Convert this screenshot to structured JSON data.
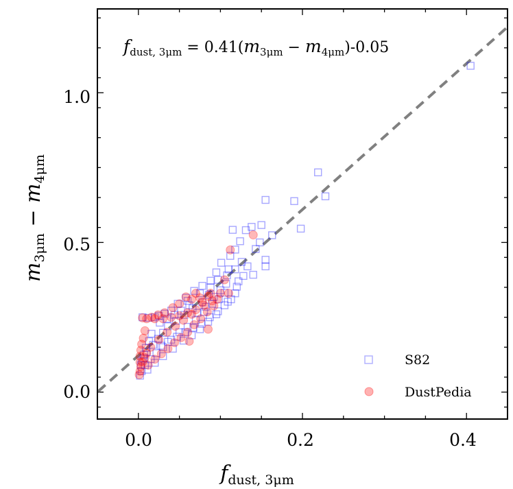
{
  "chart_data": {
    "type": "scatter",
    "title": "",
    "annotation": {
      "lhs_main": "f",
      "lhs_sub": "dust, 3μm",
      "eq": " = 0.41(",
      "m1": "m",
      "m1_sub": "3μm",
      "minus": " − ",
      "m2": "m",
      "m2_sub": "4μm",
      "tail": ")-0.05"
    },
    "xlabel": {
      "main": "f",
      "sub": "dust, 3μm"
    },
    "ylabel": {
      "a": "m",
      "a_sub": "3μm",
      "minus": " − ",
      "b": "m",
      "b_sub": "4μm"
    },
    "xlim": [
      -0.05,
      0.45
    ],
    "ylim": [
      -0.09,
      1.28
    ],
    "xticks": [
      0.0,
      0.2,
      0.4
    ],
    "xtick_labels": [
      "0.0",
      "0.2",
      "0.4"
    ],
    "yticks": [
      0.0,
      0.5,
      1.0
    ],
    "ytick_labels": [
      "0.0",
      "0.5",
      "1.0"
    ],
    "fit_line": {
      "slope": 0.41,
      "intercept": -0.05,
      "style": "dashed",
      "color": "#808080"
    },
    "legend": {
      "position": "bottom-right",
      "entries": [
        "S82",
        "DustPedia"
      ]
    },
    "series": [
      {
        "name": "S82",
        "marker": "square",
        "color": "#0000ff",
        "points": [
          [
            0.405,
            1.09
          ],
          [
            0.219,
            0.734
          ],
          [
            0.228,
            0.654
          ],
          [
            0.155,
            0.642
          ],
          [
            0.19,
            0.638
          ],
          [
            0.198,
            0.546
          ],
          [
            0.163,
            0.524
          ],
          [
            0.15,
            0.558
          ],
          [
            0.138,
            0.552
          ],
          [
            0.131,
            0.541
          ],
          [
            0.115,
            0.542
          ],
          [
            0.124,
            0.504
          ],
          [
            0.143,
            0.478
          ],
          [
            0.155,
            0.442
          ],
          [
            0.155,
            0.42
          ],
          [
            0.118,
            0.476
          ],
          [
            0.112,
            0.455
          ],
          [
            0.101,
            0.432
          ],
          [
            0.095,
            0.4
          ],
          [
            0.088,
            0.372
          ],
          [
            0.078,
            0.355
          ],
          [
            0.068,
            0.338
          ],
          [
            0.058,
            0.315
          ],
          [
            0.048,
            0.295
          ],
          [
            0.04,
            0.272
          ],
          [
            0.032,
            0.262
          ],
          [
            0.025,
            0.255
          ],
          [
            0.02,
            0.25
          ],
          [
            0.012,
            0.248
          ],
          [
            0.005,
            0.25
          ],
          [
            0.107,
            0.362
          ],
          [
            0.105,
            0.332
          ],
          [
            0.098,
            0.31
          ],
          [
            0.09,
            0.295
          ],
          [
            0.08,
            0.268
          ],
          [
            0.07,
            0.24
          ],
          [
            0.06,
            0.218
          ],
          [
            0.05,
            0.2
          ],
          [
            0.04,
            0.175
          ],
          [
            0.03,
            0.15
          ],
          [
            0.022,
            0.13
          ],
          [
            0.015,
            0.11
          ],
          [
            0.008,
            0.09
          ],
          [
            0.004,
            0.07
          ],
          [
            0.002,
            0.055
          ],
          [
            0.011,
            0.075
          ],
          [
            0.02,
            0.098
          ],
          [
            0.03,
            0.12
          ],
          [
            0.042,
            0.145
          ],
          [
            0.055,
            0.172
          ],
          [
            0.065,
            0.19
          ],
          [
            0.075,
            0.21
          ],
          [
            0.085,
            0.235
          ],
          [
            0.095,
            0.26
          ],
          [
            0.105,
            0.29
          ],
          [
            0.113,
            0.31
          ],
          [
            0.118,
            0.33
          ],
          [
            0.086,
            0.325
          ],
          [
            0.078,
            0.3
          ],
          [
            0.066,
            0.28
          ],
          [
            0.056,
            0.258
          ],
          [
            0.046,
            0.238
          ],
          [
            0.036,
            0.22
          ],
          [
            0.03,
            0.198
          ],
          [
            0.024,
            0.178
          ],
          [
            0.018,
            0.158
          ],
          [
            0.01,
            0.135
          ],
          [
            0.006,
            0.112
          ],
          [
            0.003,
            0.09
          ],
          [
            0.14,
            0.392
          ],
          [
            0.128,
            0.388
          ],
          [
            0.122,
            0.37
          ],
          [
            0.133,
            0.42
          ],
          [
            0.148,
            0.5
          ],
          [
            0.062,
            0.29
          ],
          [
            0.052,
            0.272
          ],
          [
            0.072,
            0.265
          ],
          [
            0.082,
            0.285
          ],
          [
            0.092,
            0.318
          ],
          [
            0.1,
            0.34
          ],
          [
            0.108,
            0.39
          ],
          [
            0.097,
            0.375
          ],
          [
            0.088,
            0.35
          ],
          [
            0.075,
            0.33
          ],
          [
            0.06,
            0.305
          ],
          [
            0.035,
            0.245
          ],
          [
            0.044,
            0.258
          ],
          [
            0.026,
            0.232
          ],
          [
            0.016,
            0.195
          ],
          [
            0.013,
            0.17
          ],
          [
            0.009,
            0.148
          ],
          [
            0.007,
            0.125
          ],
          [
            0.004,
            0.105
          ],
          [
            0.028,
            0.155
          ],
          [
            0.036,
            0.168
          ],
          [
            0.047,
            0.185
          ],
          [
            0.057,
            0.2
          ],
          [
            0.067,
            0.215
          ],
          [
            0.077,
            0.228
          ],
          [
            0.087,
            0.25
          ],
          [
            0.097,
            0.27
          ],
          [
            0.109,
            0.302
          ],
          [
            0.12,
            0.352
          ],
          [
            0.126,
            0.435
          ],
          [
            0.118,
            0.41
          ],
          [
            0.11,
            0.41
          ]
        ]
      },
      {
        "name": "DustPedia",
        "marker": "circle",
        "color": "#ff0000",
        "points": [
          [
            0.14,
            0.525
          ],
          [
            0.112,
            0.475
          ],
          [
            0.105,
            0.375
          ],
          [
            0.1,
            0.33
          ],
          [
            0.11,
            0.33
          ],
          [
            0.09,
            0.305
          ],
          [
            0.08,
            0.29
          ],
          [
            0.07,
            0.275
          ],
          [
            0.06,
            0.265
          ],
          [
            0.05,
            0.255
          ],
          [
            0.04,
            0.25
          ],
          [
            0.03,
            0.245
          ],
          [
            0.02,
            0.245
          ],
          [
            0.01,
            0.245
          ],
          [
            0.005,
            0.248
          ],
          [
            0.078,
            0.3
          ],
          [
            0.065,
            0.26
          ],
          [
            0.055,
            0.24
          ],
          [
            0.045,
            0.22
          ],
          [
            0.035,
            0.2
          ],
          [
            0.025,
            0.175
          ],
          [
            0.015,
            0.15
          ],
          [
            0.01,
            0.13
          ],
          [
            0.008,
            0.115
          ],
          [
            0.005,
            0.1
          ],
          [
            0.003,
            0.085
          ],
          [
            0.002,
            0.07
          ],
          [
            0.001,
            0.058
          ],
          [
            0.012,
            0.09
          ],
          [
            0.02,
            0.11
          ],
          [
            0.028,
            0.128
          ],
          [
            0.036,
            0.145
          ],
          [
            0.044,
            0.165
          ],
          [
            0.052,
            0.182
          ],
          [
            0.06,
            0.2
          ],
          [
            0.068,
            0.225
          ],
          [
            0.076,
            0.245
          ],
          [
            0.084,
            0.268
          ],
          [
            0.092,
            0.288
          ],
          [
            0.096,
            0.31
          ],
          [
            0.07,
            0.33
          ],
          [
            0.058,
            0.318
          ],
          [
            0.05,
            0.295
          ],
          [
            0.042,
            0.282
          ],
          [
            0.032,
            0.265
          ],
          [
            0.024,
            0.258
          ],
          [
            0.016,
            0.25
          ],
          [
            0.008,
            0.205
          ],
          [
            0.006,
            0.18
          ],
          [
            0.004,
            0.16
          ],
          [
            0.003,
            0.14
          ],
          [
            0.002,
            0.12
          ],
          [
            0.002,
            0.1
          ],
          [
            0.065,
            0.31
          ],
          [
            0.075,
            0.315
          ],
          [
            0.085,
            0.32
          ],
          [
            0.088,
            0.33
          ],
          [
            0.062,
            0.17
          ],
          [
            0.085,
            0.21
          ]
        ]
      }
    ]
  }
}
